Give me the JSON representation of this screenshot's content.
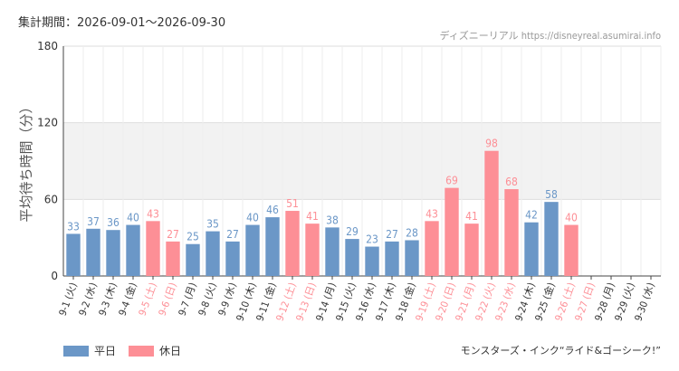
{
  "header": {
    "period": "集計期間：2026-09-01～2026-09-30",
    "source": "ディズニーリアル https://disneyreal.asumirai.info"
  },
  "footer": {
    "ride": "モンスターズ・インク“ライド&ゴーシーク!”"
  },
  "legend": [
    {
      "label": "平日",
      "color": "#6b97c7"
    },
    {
      "label": "休日",
      "color": "#fd8f96"
    }
  ],
  "chart_data": {
    "type": "bar",
    "ylabel": "平均待ち時間（分）",
    "ylim": [
      0,
      180
    ],
    "yticks": [
      0,
      60,
      120,
      180
    ],
    "shaded_band": [
      60,
      120
    ],
    "colors": {
      "weekday": "#6b97c7",
      "holiday": "#fd8f96",
      "band": "#f2f2f2",
      "grid": "#dddddd"
    },
    "categories": [
      "9-1 (火)",
      "9-2 (水)",
      "9-3 (木)",
      "9-4 (金)",
      "9-5 (土)",
      "9-6 (日)",
      "9-7 (月)",
      "9-8 (火)",
      "9-9 (水)",
      "9-10 (木)",
      "9-11 (金)",
      "9-12 (土)",
      "9-13 (日)",
      "9-14 (月)",
      "9-15 (火)",
      "9-16 (水)",
      "9-17 (木)",
      "9-18 (金)",
      "9-19 (土)",
      "9-20 (日)",
      "9-21 (月)",
      "9-22 (火)",
      "9-23 (水)",
      "9-24 (木)",
      "9-25 (金)",
      "9-26 (土)",
      "9-27 (日)",
      "9-28 (月)",
      "9-29 (火)",
      "9-30 (水)"
    ],
    "values": [
      33,
      37,
      36,
      40,
      43,
      27,
      25,
      35,
      27,
      40,
      46,
      51,
      41,
      38,
      29,
      23,
      27,
      28,
      43,
      69,
      41,
      98,
      68,
      42,
      58,
      40,
      null,
      null,
      null,
      null
    ],
    "holiday": [
      false,
      false,
      false,
      false,
      true,
      true,
      false,
      false,
      false,
      false,
      false,
      true,
      true,
      false,
      false,
      false,
      false,
      false,
      true,
      true,
      true,
      true,
      true,
      false,
      false,
      true,
      true,
      false,
      false,
      false
    ]
  }
}
